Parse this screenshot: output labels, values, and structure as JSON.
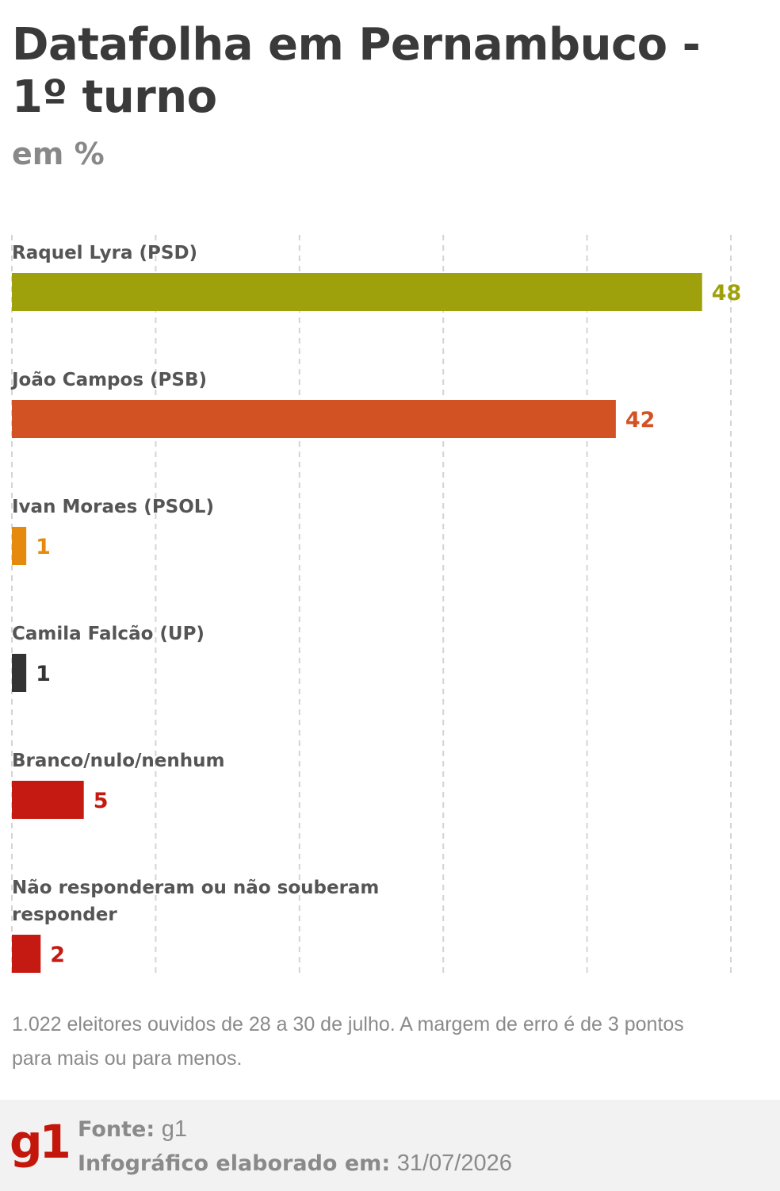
{
  "title": "Datafolha em Pernambuco - 1º turno",
  "subtitle": "em %",
  "chart_data": {
    "type": "bar",
    "orientation": "horizontal",
    "title": "Datafolha em Pernambuco - 1º turno",
    "subtitle": "em %",
    "xlim": [
      0,
      50
    ],
    "grid": true,
    "categories": [
      "Raquel Lyra (PSD)",
      "João Campos (PSB)",
      "Ivan Moraes (PSOL)",
      "Camila Falcão (UP)",
      "Branco/nulo/nenhum",
      "Não responderam ou não souberam responder"
    ],
    "values": [
      48,
      42,
      1,
      1,
      5,
      2
    ],
    "colors": [
      "#9ea10b",
      "#d35224",
      "#e58a0c",
      "#333333",
      "#c41a12",
      "#c41a12"
    ]
  },
  "note": "1.022 eleitores ouvidos de 28 a 30 de julho. A margem de erro é de 3 pontos para mais ou para menos.",
  "footer": {
    "logo": "g1",
    "source_label": "Fonte:",
    "source_value": "g1",
    "date_label": "Infográfico elaborado em:",
    "date_value": "31/07/2026"
  }
}
